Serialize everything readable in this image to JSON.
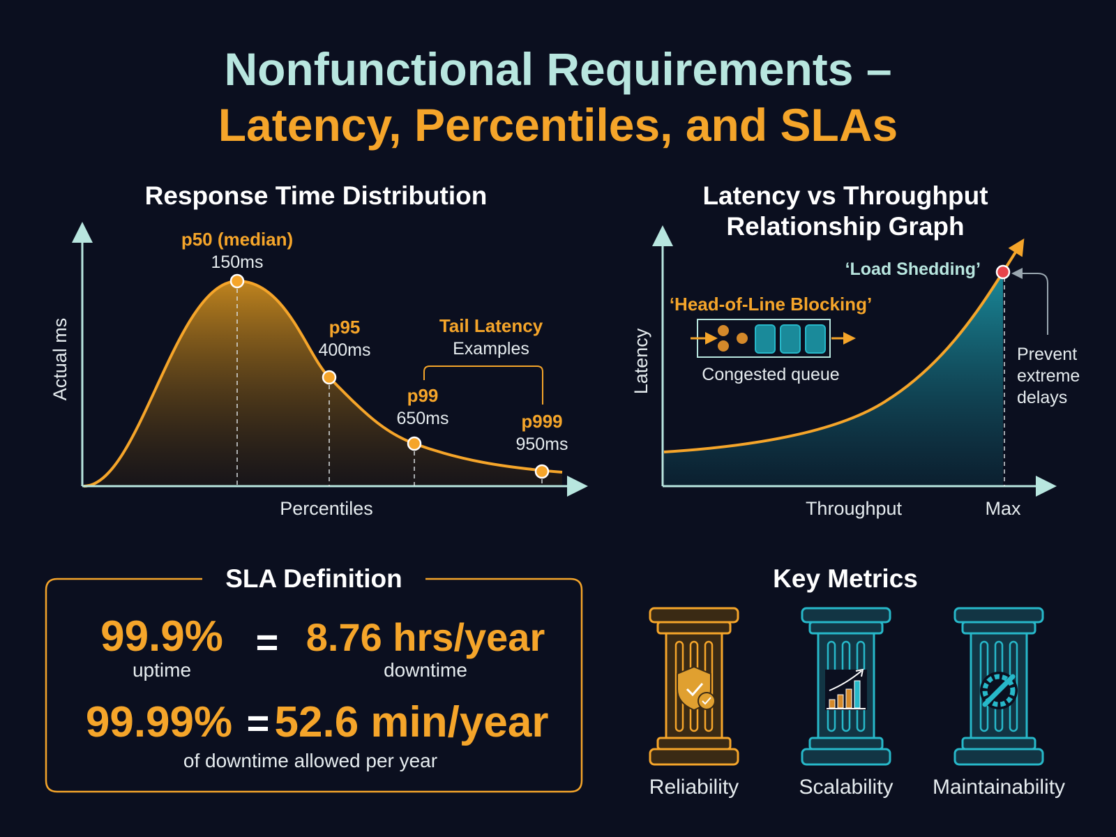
{
  "title": {
    "line1": "Nonfunctional Requirements –",
    "line2": "Latency, Percentiles, and SLAs"
  },
  "response_time": {
    "title": "Response Time Distribution",
    "y_label": "Actual ms",
    "x_label": "Percentiles",
    "markers": [
      {
        "name": "p50 (median)",
        "value": "150ms"
      },
      {
        "name": "p95",
        "value": "400ms"
      },
      {
        "name": "p99",
        "value": "650ms"
      },
      {
        "name": "p999",
        "value": "950ms"
      }
    ],
    "tail_label": "Tail Latency",
    "tail_sub": "Examples"
  },
  "latency_throughput": {
    "title_line1": "Latency vs Throughput",
    "title_line2": "Relationship Graph",
    "y_label": "Latency",
    "x_label": "Throughput",
    "x_max_label": "Max",
    "load_shedding": "‘Load Shedding’",
    "hol_blocking": "‘Head-of-Line Blocking’",
    "queue_label": "Congested queue",
    "prevent_line1": "Prevent",
    "prevent_line2": "extreme",
    "prevent_line3": "delays"
  },
  "sla": {
    "title": "SLA Definition",
    "row1": {
      "uptime": "99.9%",
      "uptime_label": "uptime",
      "equals": "=",
      "downtime": "8.76 hrs/year",
      "downtime_label": "downtime"
    },
    "row2": {
      "uptime": "99.99%",
      "equals": "=",
      "downtime": "52.6 min/year",
      "note": "of downtime allowed per year"
    }
  },
  "key_metrics": {
    "title": "Key Metrics",
    "pillars": [
      {
        "label": "Reliability",
        "icon": "shield-check-icon",
        "color": "#f5a52a"
      },
      {
        "label": "Scalability",
        "icon": "growth-chart-icon",
        "color": "#27b8c9"
      },
      {
        "label": "Maintainability",
        "icon": "gear-wrench-icon",
        "color": "#27b8c9"
      }
    ]
  },
  "colors": {
    "background": "#0b0f1f",
    "accent_orange": "#f5a52a",
    "accent_teal": "#27b8c9",
    "title_teal": "#b8e6df",
    "alert_red": "#e8434a"
  }
}
